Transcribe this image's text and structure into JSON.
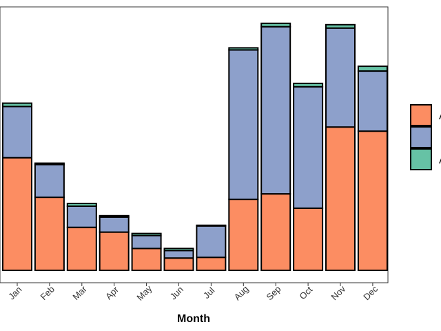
{
  "chart_data": {
    "type": "bar",
    "stacked": true,
    "xlabel": "Month",
    "ylabel": "",
    "title": "",
    "categories": [
      "Jan",
      "Feb",
      "Mar",
      "Apr",
      "May",
      "Jun",
      "Jul",
      "Aug",
      "Sep",
      "Oct",
      "Nov",
      "Dec"
    ],
    "ylim": [
      0,
      380
    ],
    "grid": false,
    "legend_position": "right",
    "series": [
      {
        "name": "A",
        "color": "#fc8d62",
        "values": [
          165,
          107,
          63,
          56,
          32,
          18,
          19,
          104,
          112,
          91,
          210,
          204
        ]
      },
      {
        "name": "",
        "color": "#8da0cb",
        "values": [
          75,
          48,
          31,
          22,
          19,
          11,
          46,
          219,
          245,
          178,
          145,
          88
        ]
      },
      {
        "name": "A",
        "color": "#66c2a5",
        "values": [
          5,
          2,
          4,
          2,
          3,
          3,
          1,
          3,
          5,
          5,
          5,
          7
        ]
      }
    ]
  }
}
